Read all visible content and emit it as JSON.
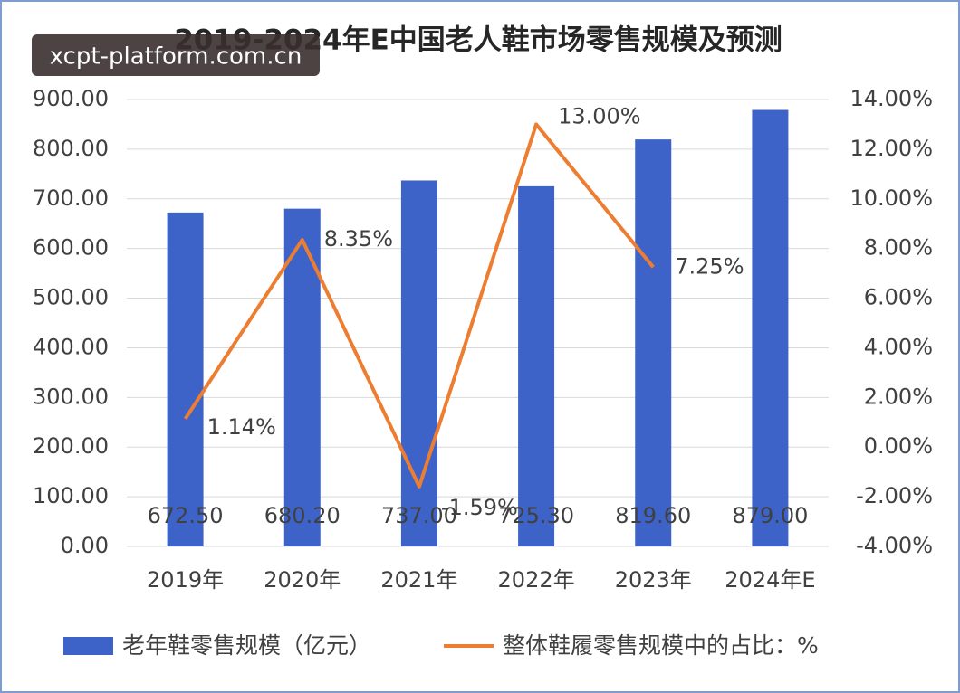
{
  "chart_data": {
    "type": "combo",
    "title": "2019-2024年E中国老人鞋市场零售规模及预测",
    "watermark": "xcpt-platform.com.cn",
    "categories": [
      "2019年",
      "2020年",
      "2021年",
      "2022年",
      "2023年",
      "2024年E"
    ],
    "series": [
      {
        "name": "老年鞋零售规模（亿元）",
        "type": "bar",
        "color": "#3d63c8",
        "values": [
          672.5,
          680.2,
          737.0,
          725.3,
          819.6,
          879.0
        ],
        "value_labels": [
          "672.50",
          "680.20",
          "737.00",
          "725.30",
          "819.60",
          "879.00"
        ]
      },
      {
        "name": "整体鞋履零售规模中的占比：%",
        "type": "line",
        "axis": "y2",
        "color": "#ed7d31",
        "values": [
          1.14,
          8.35,
          -1.59,
          13.0,
          7.25,
          null
        ],
        "value_labels": [
          "1.14%",
          "8.35%",
          "-1.59%",
          "13.00%",
          "7.25%",
          null
        ]
      }
    ],
    "ylim": [
      0,
      900
    ],
    "yticks": [
      {
        "value": 0,
        "label": "0.00"
      },
      {
        "value": 100,
        "label": "100.00"
      },
      {
        "value": 200,
        "label": "200.00"
      },
      {
        "value": 300,
        "label": "300.00"
      },
      {
        "value": 400,
        "label": "400.00"
      },
      {
        "value": 500,
        "label": "500.00"
      },
      {
        "value": 600,
        "label": "600.00"
      },
      {
        "value": 700,
        "label": "700.00"
      },
      {
        "value": 800,
        "label": "800.00"
      },
      {
        "value": 900,
        "label": "900.00"
      }
    ],
    "y2lim": [
      -4,
      14
    ],
    "y2ticks": [
      {
        "value": -4,
        "label": "-4.00%"
      },
      {
        "value": -2,
        "label": "-2.00%"
      },
      {
        "value": 0,
        "label": "0.00%"
      },
      {
        "value": 2,
        "label": "2.00%"
      },
      {
        "value": 4,
        "label": "4.00%"
      },
      {
        "value": 6,
        "label": "6.00%"
      },
      {
        "value": 8,
        "label": "8.00%"
      },
      {
        "value": 10,
        "label": "10.00%"
      },
      {
        "value": 12,
        "label": "12.00%"
      },
      {
        "value": 14,
        "label": "14.00%"
      }
    ],
    "grid": true,
    "legend": "bottom"
  }
}
